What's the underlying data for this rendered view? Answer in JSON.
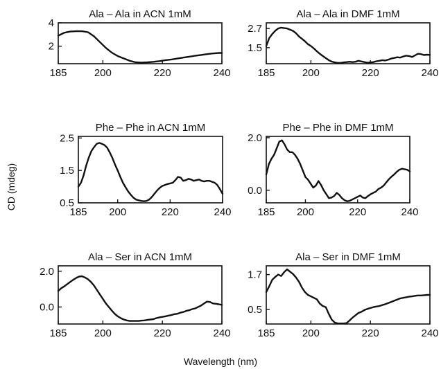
{
  "figure": {
    "ylabel": "CD (mdeg)",
    "xlabel": "Wavelength (nm)"
  },
  "chart_data": [
    {
      "type": "line",
      "title": "Ala – Ala in ACN 1mM",
      "xlim": [
        185,
        240
      ],
      "ylim": [
        0.5,
        4.0
      ],
      "xticks": [
        185,
        200,
        220,
        240
      ],
      "yticks": [
        {
          "v": 4,
          "label": "4"
        },
        {
          "v": 2,
          "label": "2"
        }
      ],
      "x": [
        185,
        187,
        189,
        191,
        193,
        195,
        197,
        199,
        201,
        203,
        205,
        207,
        209,
        211,
        213,
        215,
        217,
        219,
        221,
        223,
        225,
        227,
        229,
        231,
        233,
        235,
        237,
        239,
        240
      ],
      "y": [
        2.9,
        3.15,
        3.25,
        3.28,
        3.28,
        3.2,
        2.85,
        2.35,
        1.85,
        1.45,
        1.15,
        0.95,
        0.75,
        0.62,
        0.6,
        0.62,
        0.66,
        0.72,
        0.8,
        0.86,
        0.94,
        1.02,
        1.1,
        1.18,
        1.25,
        1.32,
        1.38,
        1.42,
        1.42
      ]
    },
    {
      "type": "line",
      "title": "Ala – Ala in DMF 1mM",
      "xlim": [
        185,
        240
      ],
      "ylim": [
        0.5,
        3.05
      ],
      "xticks": [
        185,
        200,
        220,
        240
      ],
      "yticks": [
        {
          "v": 2.7,
          "label": "2.7"
        },
        {
          "v": 1.5,
          "label": "1.5"
        }
      ],
      "x": [
        185,
        186,
        187,
        188,
        189,
        190,
        191,
        192,
        193,
        194,
        195,
        196,
        197,
        198,
        199,
        200,
        201,
        202,
        203,
        204,
        205,
        206,
        207,
        208,
        209,
        210,
        211,
        212,
        213,
        214,
        215,
        216,
        217,
        218,
        219,
        220,
        221,
        222,
        223,
        224,
        225,
        226,
        227,
        228,
        229,
        230,
        231,
        232,
        233,
        234,
        235,
        236,
        237,
        238,
        239,
        240
      ],
      "y": [
        1.6,
        2.1,
        2.35,
        2.55,
        2.7,
        2.75,
        2.72,
        2.7,
        2.62,
        2.55,
        2.4,
        2.2,
        2.05,
        1.9,
        1.72,
        1.6,
        1.45,
        1.28,
        1.12,
        0.98,
        0.85,
        0.72,
        0.63,
        0.58,
        0.55,
        0.55,
        0.58,
        0.6,
        0.62,
        0.6,
        0.62,
        0.68,
        0.64,
        0.6,
        0.56,
        0.58,
        0.6,
        0.65,
        0.68,
        0.72,
        0.7,
        0.75,
        0.82,
        0.86,
        0.9,
        0.88,
        0.95,
        1.0,
        0.98,
        0.92,
        1.02,
        1.12,
        1.1,
        1.04,
        1.06,
        1.05
      ]
    },
    {
      "type": "line",
      "title": "Phe – Phe in ACN 1mM",
      "xlim": [
        185,
        240
      ],
      "ylim": [
        0.5,
        2.55
      ],
      "xticks": [
        185,
        200,
        220,
        240
      ],
      "yticks": [
        {
          "v": 2.5,
          "label": "2.5"
        },
        {
          "v": 1.5,
          "label": "1.5"
        },
        {
          "v": 0.5,
          "label": "0.5"
        }
      ],
      "x": [
        185,
        186,
        187,
        188,
        189,
        190,
        191,
        192,
        193,
        194,
        195,
        196,
        197,
        198,
        199,
        200,
        201,
        202,
        203,
        204,
        205,
        206,
        207,
        208,
        209,
        210,
        211,
        212,
        213,
        214,
        215,
        216,
        217,
        218,
        219,
        220,
        221,
        222,
        223,
        224,
        225,
        226,
        227,
        228,
        229,
        230,
        231,
        232,
        233,
        234,
        235,
        236,
        237,
        238,
        239,
        240
      ],
      "y": [
        1.0,
        1.12,
        1.35,
        1.65,
        1.9,
        2.1,
        2.22,
        2.32,
        2.35,
        2.32,
        2.28,
        2.2,
        2.05,
        1.88,
        1.68,
        1.5,
        1.3,
        1.12,
        0.98,
        0.85,
        0.75,
        0.66,
        0.6,
        0.58,
        0.56,
        0.55,
        0.56,
        0.6,
        0.68,
        0.78,
        0.88,
        0.96,
        1.02,
        1.05,
        1.08,
        1.1,
        1.12,
        1.2,
        1.3,
        1.28,
        1.18,
        1.2,
        1.24,
        1.22,
        1.18,
        1.2,
        1.22,
        1.18,
        1.16,
        1.18,
        1.18,
        1.15,
        1.12,
        1.05,
        0.92,
        0.78
      ]
    },
    {
      "type": "line",
      "title": "Phe – Phe in DMF 1mM",
      "xlim": [
        185,
        240
      ],
      "ylim": [
        -0.48,
        2.05
      ],
      "xticks": [
        185,
        200,
        220,
        240
      ],
      "yticks": [
        {
          "v": 2.0,
          "label": "2.0"
        },
        {
          "v": 0.0,
          "label": "0.0"
        }
      ],
      "x": [
        185,
        186,
        187,
        188,
        189,
        190,
        191,
        192,
        193,
        194,
        195,
        196,
        197,
        198,
        199,
        200,
        201,
        202,
        203,
        204,
        205,
        206,
        207,
        208,
        209,
        210,
        211,
        212,
        213,
        214,
        215,
        216,
        217,
        218,
        219,
        220,
        221,
        222,
        223,
        224,
        225,
        226,
        227,
        228,
        229,
        230,
        231,
        232,
        233,
        234,
        235,
        236,
        237,
        238,
        239,
        240
      ],
      "y": [
        0.6,
        1.0,
        1.2,
        1.35,
        1.6,
        1.85,
        1.9,
        1.75,
        1.55,
        1.45,
        1.45,
        1.35,
        1.2,
        1.0,
        0.75,
        0.5,
        0.4,
        0.25,
        0.1,
        0.18,
        0.35,
        0.2,
        0.0,
        -0.15,
        -0.3,
        -0.28,
        -0.22,
        -0.1,
        -0.18,
        -0.3,
        -0.38,
        -0.42,
        -0.4,
        -0.35,
        -0.3,
        -0.25,
        -0.2,
        -0.28,
        -0.3,
        -0.22,
        -0.15,
        -0.1,
        -0.05,
        0.05,
        0.1,
        0.18,
        0.3,
        0.42,
        0.52,
        0.6,
        0.7,
        0.78,
        0.82,
        0.8,
        0.78,
        0.72
      ]
    },
    {
      "type": "line",
      "title": "Ala – Ser in ACN 1mM",
      "xlim": [
        185,
        240
      ],
      "ylim": [
        -0.95,
        2.3
      ],
      "xticks": [
        185,
        200,
        220,
        240
      ],
      "yticks": [
        {
          "v": 2.0,
          "label": "2.0"
        },
        {
          "v": 0.0,
          "label": "0.0"
        }
      ],
      "x": [
        185,
        186,
        187,
        188,
        189,
        190,
        191,
        192,
        193,
        194,
        195,
        196,
        197,
        198,
        199,
        200,
        201,
        202,
        203,
        204,
        205,
        206,
        207,
        208,
        209,
        210,
        211,
        212,
        213,
        214,
        215,
        216,
        217,
        218,
        219,
        220,
        221,
        222,
        223,
        224,
        225,
        226,
        227,
        228,
        229,
        230,
        231,
        232,
        233,
        234,
        235,
        236,
        237,
        238,
        239,
        240
      ],
      "y": [
        0.9,
        1.05,
        1.15,
        1.28,
        1.4,
        1.52,
        1.62,
        1.7,
        1.72,
        1.65,
        1.55,
        1.4,
        1.2,
        0.95,
        0.7,
        0.45,
        0.2,
        0.0,
        -0.2,
        -0.38,
        -0.52,
        -0.62,
        -0.7,
        -0.75,
        -0.78,
        -0.78,
        -0.78,
        -0.78,
        -0.76,
        -0.75,
        -0.72,
        -0.7,
        -0.68,
        -0.62,
        -0.58,
        -0.55,
        -0.52,
        -0.48,
        -0.45,
        -0.4,
        -0.38,
        -0.32,
        -0.28,
        -0.22,
        -0.18,
        -0.12,
        -0.08,
        0.0,
        0.08,
        0.2,
        0.3,
        0.28,
        0.2,
        0.18,
        0.15,
        0.12
      ]
    },
    {
      "type": "line",
      "title": "Ala – Ser in DMF 1mM",
      "xlim": [
        185,
        240
      ],
      "ylim": [
        0.0,
        2.0
      ],
      "xticks": [
        185,
        200,
        220,
        240
      ],
      "yticks": [
        {
          "v": 1.7,
          "label": "1.7"
        },
        {
          "v": 0.5,
          "label": "0.5"
        }
      ],
      "x": [
        185,
        186,
        187,
        188,
        189,
        190,
        191,
        192,
        193,
        194,
        195,
        196,
        197,
        198,
        199,
        200,
        201,
        202,
        203,
        204,
        205,
        206,
        207,
        208,
        209,
        210,
        211,
        212,
        213,
        214,
        215,
        216,
        217,
        218,
        219,
        220,
        221,
        222,
        223,
        224,
        225,
        226,
        227,
        228,
        229,
        230,
        231,
        232,
        233,
        234,
        235,
        236,
        237,
        238,
        239,
        240
      ],
      "y": [
        1.1,
        1.3,
        1.52,
        1.62,
        1.7,
        1.65,
        1.78,
        1.88,
        1.8,
        1.72,
        1.6,
        1.45,
        1.25,
        1.1,
        1.0,
        0.95,
        0.9,
        0.85,
        0.7,
        0.62,
        0.58,
        0.35,
        0.15,
        0.05,
        0.02,
        0.02,
        0.02,
        0.03,
        0.12,
        0.22,
        0.3,
        0.38,
        0.42,
        0.48,
        0.52,
        0.55,
        0.58,
        0.6,
        0.62,
        0.65,
        0.68,
        0.72,
        0.76,
        0.8,
        0.84,
        0.88,
        0.9,
        0.92,
        0.94,
        0.95,
        0.97,
        0.98,
        0.98,
        0.99,
        1.0,
        1.0
      ]
    }
  ]
}
